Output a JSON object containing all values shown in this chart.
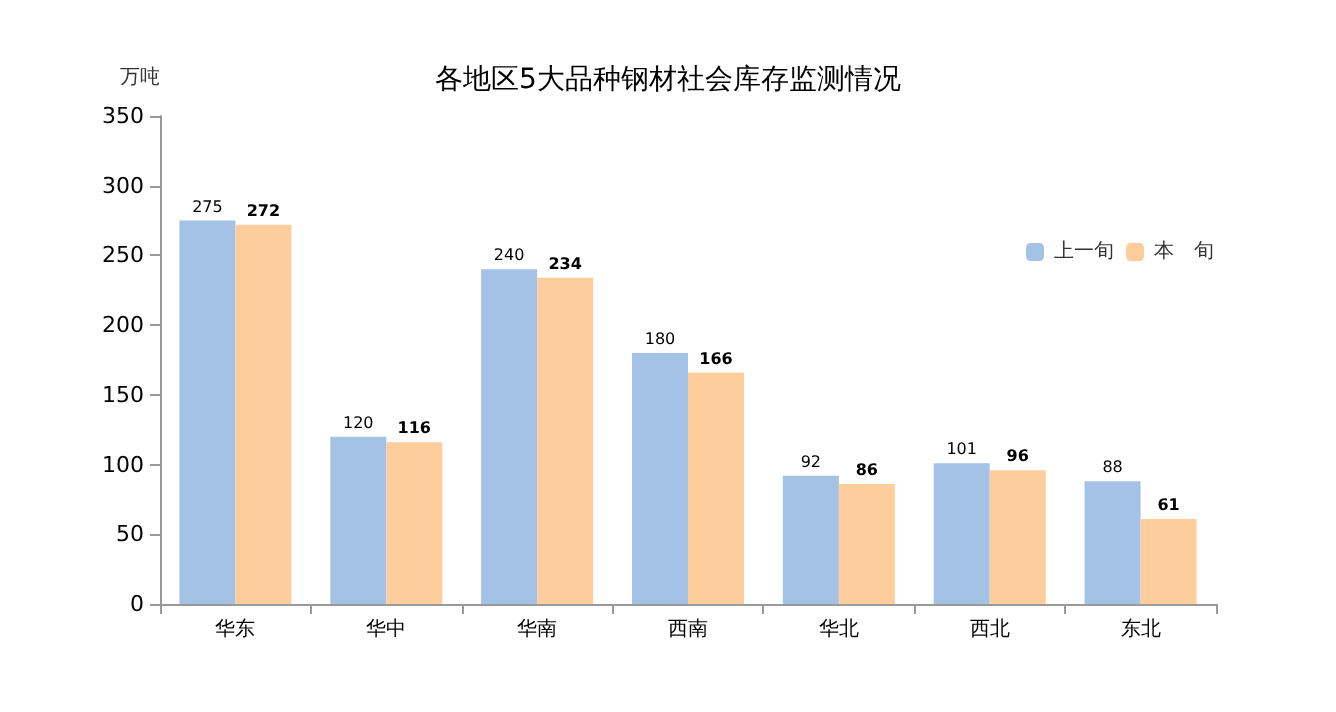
{
  "chart_data": {
    "type": "bar",
    "title": "各地区5大品种钢材社会库存监测情况",
    "ylabel": "万吨",
    "categories": [
      "华东",
      "华中",
      "华南",
      "西南",
      "华北",
      "西北",
      "东北"
    ],
    "series": [
      {
        "name": "上一旬",
        "color": "#a4c2e6",
        "values": [
          275,
          120,
          240,
          180,
          92,
          101,
          88
        ]
      },
      {
        "name": "本　旬",
        "color": "#fecd9c",
        "values": [
          272,
          116,
          234,
          166,
          86,
          96,
          61
        ]
      }
    ],
    "ylim": [
      0,
      350
    ],
    "yticks": [
      0,
      50,
      100,
      150,
      200,
      250,
      300,
      350
    ],
    "grid": false,
    "legend": "top right",
    "data_labels": true
  }
}
